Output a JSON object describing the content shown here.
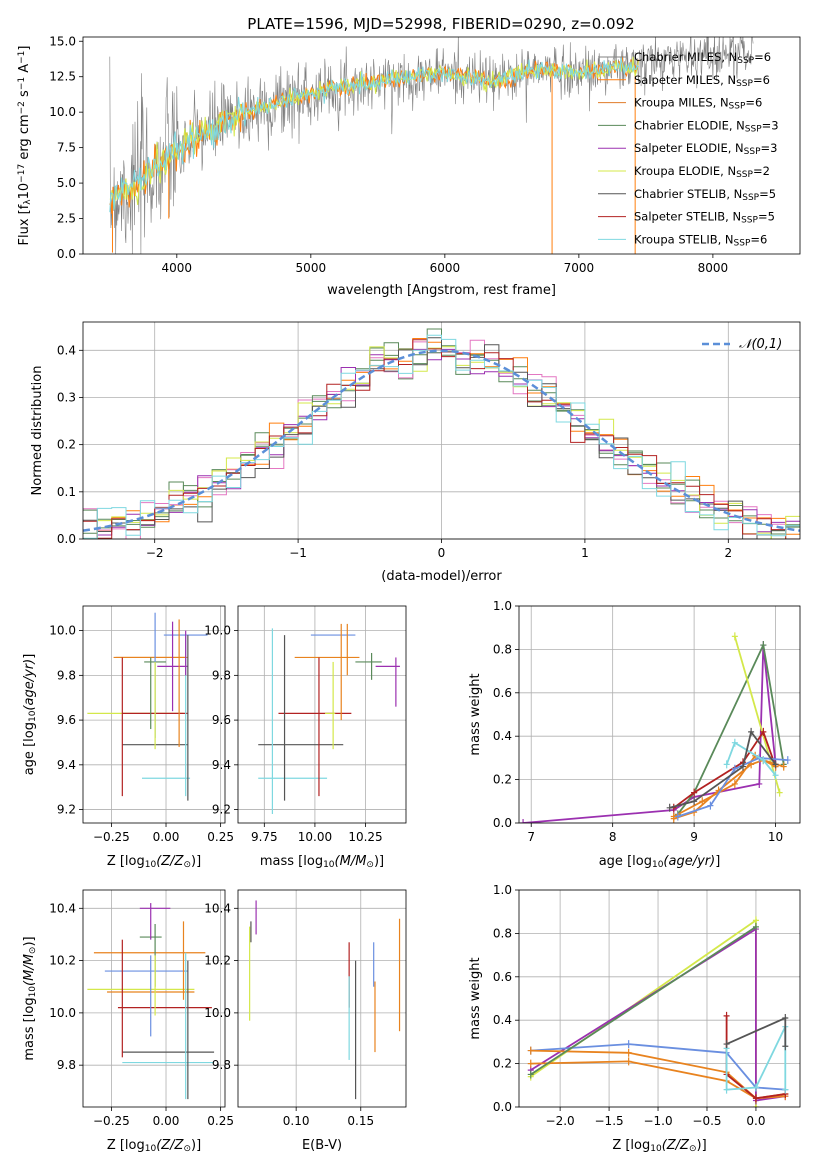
{
  "figure_title": "PLATE=1596, MJD=52998, FIBERID=0290, z=0.092",
  "models": [
    {
      "name": "Chabrier MILES",
      "n": "6",
      "color": "#808080"
    },
    {
      "name": "Salpeter MILES",
      "n": "6",
      "color": "#ff7f0e"
    },
    {
      "name": "Kroupa MILES",
      "n": "6",
      "color": "#e07b2a"
    },
    {
      "name": "Chabrier ELODIE",
      "n": "3",
      "color": "#5a8a5a"
    },
    {
      "name": "Salpeter ELODIE",
      "n": "3",
      "color": "#9b30b0"
    },
    {
      "name": "Kroupa ELODIE",
      "n": "2",
      "color": "#d4e84a"
    },
    {
      "name": "Chabrier STELIB",
      "n": "5",
      "color": "#555555"
    },
    {
      "name": "Salpeter STELIB",
      "n": "5",
      "color": "#b22222"
    },
    {
      "name": "Kroupa STELIB",
      "n": "6",
      "color": "#7fd8e0"
    }
  ],
  "chart_data": [
    {
      "id": "spectrum",
      "type": "line",
      "xlabel": "wavelength [Angstrom, rest frame]",
      "ylabel": "Flux [f_λ 10^-17 erg cm^-2 s^-1 A^-1]",
      "xlim": [
        3300,
        8650
      ],
      "ylim": [
        0,
        15.3
      ],
      "xticks": [
        4000,
        5000,
        6000,
        7000,
        8000
      ],
      "yticks": [
        0.0,
        2.5,
        5.0,
        7.5,
        10.0,
        12.5,
        15.0
      ],
      "data_range": [
        3500,
        8300
      ],
      "continuum": [
        [
          3500,
          3.8
        ],
        [
          3600,
          4.5
        ],
        [
          3700,
          4.8
        ],
        [
          3800,
          5.8
        ],
        [
          3900,
          6.5
        ],
        [
          4000,
          7.2
        ],
        [
          4200,
          8.6
        ],
        [
          4400,
          9.5
        ],
        [
          4600,
          10.2
        ],
        [
          4800,
          10.8
        ],
        [
          5000,
          11.3
        ],
        [
          5200,
          11.8
        ],
        [
          5400,
          12.0
        ],
        [
          5600,
          12.3
        ],
        [
          5800,
          12.5
        ],
        [
          6000,
          12.8
        ],
        [
          6200,
          12.4
        ],
        [
          6400,
          12.2
        ],
        [
          6600,
          12.9
        ],
        [
          6800,
          13.0
        ],
        [
          7000,
          12.8
        ],
        [
          7200,
          13.1
        ],
        [
          7400,
          13.2
        ],
        [
          7600,
          13.6
        ],
        [
          7800,
          14.0
        ],
        [
          8000,
          14.1
        ],
        [
          8300,
          14.3
        ]
      ]
    },
    {
      "id": "residual_hist",
      "type": "histogram",
      "xlabel": "(data-model)/error",
      "ylabel": "Normed distribution",
      "xlim": [
        -2.5,
        2.5
      ],
      "ylim": [
        0,
        0.46
      ],
      "xticks": [
        -2,
        -1,
        0,
        1,
        2
      ],
      "yticks": [
        0.0,
        0.1,
        0.2,
        0.3,
        0.4
      ],
      "bin_width": 0.1,
      "legend": "𝒩(0,1)",
      "legend_position": "top-right"
    },
    {
      "id": "age_vs_Z",
      "type": "errorbar",
      "xlabel": "Z [log10(Z/Z⊙)]",
      "ylabel": "age [log10(age/yr)]",
      "xlim": [
        -0.38,
        0.27
      ],
      "ylim": [
        9.14,
        10.11
      ],
      "xticks": [
        -0.25,
        0.0,
        0.25
      ],
      "xtick_labels": [
        "-0.25",
        "0.00",
        "0.25"
      ],
      "yticks": [
        9.2,
        9.4,
        9.6,
        9.8,
        10.0
      ],
      "points": [
        {
          "m": 0,
          "x": 0.09,
          "xe": 0.1,
          "y": 9.98,
          "ye": 0.0
        },
        {
          "m": 1,
          "x": -0.07,
          "xe": 0.17,
          "y": 9.88,
          "ye": 0.0
        },
        {
          "m": 2,
          "x": -0.07,
          "xe": 0.16,
          "y": 9.88,
          "ye": 0.0
        },
        {
          "m": 3,
          "x": -0.05,
          "xe": 0.05,
          "y": 9.86,
          "ye": 0.0
        },
        {
          "m": 4,
          "x": 0.03,
          "xe": 0.07,
          "y": 9.84,
          "ye": 0.2
        },
        {
          "m": 5,
          "x": -0.14,
          "xe": 0.22,
          "y": 9.63,
          "ye": 0.0
        },
        {
          "m": 6,
          "x": -0.05,
          "xe": 0.15,
          "y": 9.49,
          "ye": 0.0
        },
        {
          "m": 7,
          "x": -0.05,
          "xe": 0.15,
          "y": 9.63,
          "ye": 0.0
        },
        {
          "m": 8,
          "x": 0.0,
          "xe": 0.11,
          "y": 9.34,
          "ye": 0.0
        }
      ],
      "vlines": [
        {
          "m": 0,
          "x": -0.05,
          "y0": 9.52,
          "y1": 10.08
        },
        {
          "m": 1,
          "x": 0.06,
          "y0": 9.48,
          "y1": 10.05
        },
        {
          "m": 3,
          "x": -0.07,
          "y0": 9.56,
          "y1": 9.88
        },
        {
          "m": 5,
          "x": -0.05,
          "y0": 9.47,
          "y1": 9.86
        },
        {
          "m": 6,
          "x": 0.1,
          "y0": 9.24,
          "y1": 9.98
        },
        {
          "m": 7,
          "x": -0.2,
          "y0": 9.26,
          "y1": 9.88
        },
        {
          "m": 8,
          "x": 0.09,
          "y0": 9.26,
          "y1": 9.98
        },
        {
          "m": 4,
          "x": 0.09,
          "y0": 9.8,
          "y1": 10.0
        }
      ]
    },
    {
      "id": "age_vs_mass",
      "type": "errorbar",
      "xlabel": "mass [log10(M/M⊙)]",
      "ylabel": "",
      "xlim": [
        9.62,
        10.45
      ],
      "ylim": [
        9.14,
        10.11
      ],
      "xticks": [
        9.75,
        10.0,
        10.25
      ],
      "xtick_labels": [
        "9.75",
        "10.00",
        "10.25"
      ],
      "yticks": [
        9.2,
        9.4,
        9.6,
        9.8,
        10.0
      ],
      "hlines": [
        {
          "m": 0,
          "x0": 9.98,
          "x1": 10.2,
          "y": 9.98
        },
        {
          "m": 1,
          "x0": 9.9,
          "x1": 10.22,
          "y": 9.88
        },
        {
          "m": 3,
          "x0": 10.2,
          "x1": 10.33,
          "y": 9.86
        },
        {
          "m": 4,
          "x0": 10.3,
          "x1": 10.42,
          "y": 9.84
        },
        {
          "m": 6,
          "x0": 9.72,
          "x1": 10.14,
          "y": 9.49
        },
        {
          "m": 7,
          "x0": 9.82,
          "x1": 10.18,
          "y": 9.63
        },
        {
          "m": 8,
          "x0": 9.72,
          "x1": 10.06,
          "y": 9.34
        },
        {
          "m": 5,
          "x0": 10.05,
          "x1": 10.1,
          "y": 9.63
        }
      ],
      "vlines": [
        {
          "m": 1,
          "x": 10.13,
          "y0": 9.6,
          "y1": 10.03
        },
        {
          "m": 2,
          "x": 10.16,
          "y0": 9.8,
          "y1": 10.03
        },
        {
          "m": 3,
          "x": 10.28,
          "y0": 9.78,
          "y1": 9.9
        },
        {
          "m": 4,
          "x": 10.4,
          "y0": 9.66,
          "y1": 9.88
        },
        {
          "m": 5,
          "x": 10.09,
          "y0": 9.47,
          "y1": 9.86
        },
        {
          "m": 6,
          "x": 9.85,
          "y0": 9.24,
          "y1": 9.98
        },
        {
          "m": 7,
          "x": 10.02,
          "y0": 9.26,
          "y1": 9.88
        },
        {
          "m": 8,
          "x": 9.79,
          "y0": 9.18,
          "y1": 10.01
        }
      ]
    },
    {
      "id": "massweight_vs_age",
      "type": "line",
      "xlabel": "age [log10(age/yr)]",
      "ylabel": "mass weight",
      "xlim": [
        6.85,
        10.3
      ],
      "ylim": [
        0,
        1.0
      ],
      "xticks": [
        7,
        8,
        9,
        10
      ],
      "yticks": [
        0.0,
        0.2,
        0.4,
        0.6,
        0.8,
        1.0
      ],
      "series": [
        {
          "m": 4,
          "pts": [
            [
              6.9,
              0.0
            ],
            [
              8.75,
              0.06
            ],
            [
              9.0,
              0.12
            ],
            [
              9.8,
              0.18
            ],
            [
              9.85,
              0.82
            ],
            [
              10.0,
              0.27
            ]
          ]
        },
        {
          "m": 3,
          "pts": [
            [
              8.8,
              0.04
            ],
            [
              9.0,
              0.14
            ],
            [
              9.85,
              0.82
            ],
            [
              10.1,
              0.27
            ]
          ]
        },
        {
          "m": 5,
          "pts": [
            [
              9.5,
              0.86
            ],
            [
              10.05,
              0.14
            ]
          ]
        },
        {
          "m": 7,
          "pts": [
            [
              8.75,
              0.07
            ],
            [
              9.0,
              0.14
            ],
            [
              9.6,
              0.28
            ],
            [
              9.85,
              0.42
            ],
            [
              10.0,
              0.26
            ]
          ]
        },
        {
          "m": 1,
          "pts": [
            [
              8.75,
              0.02
            ],
            [
              9.0,
              0.05
            ],
            [
              9.3,
              0.15
            ],
            [
              9.7,
              0.27
            ],
            [
              9.85,
              0.29
            ],
            [
              10.1,
              0.26
            ]
          ]
        },
        {
          "m": 2,
          "pts": [
            [
              8.75,
              0.03
            ],
            [
              9.1,
              0.1
            ],
            [
              9.5,
              0.18
            ],
            [
              9.75,
              0.31
            ],
            [
              10.0,
              0.26
            ]
          ]
        },
        {
          "m": 0,
          "pts": [
            [
              8.8,
              0.03
            ],
            [
              9.2,
              0.08
            ],
            [
              9.5,
              0.25
            ],
            [
              9.8,
              0.3
            ],
            [
              10.15,
              0.29
            ]
          ]
        },
        {
          "m": 8,
          "pts": [
            [
              9.4,
              0.27
            ],
            [
              9.5,
              0.37
            ],
            [
              9.85,
              0.29
            ],
            [
              10.0,
              0.22
            ]
          ]
        },
        {
          "m": 6,
          "pts": [
            [
              8.7,
              0.07
            ],
            [
              9.0,
              0.1
            ],
            [
              9.6,
              0.26
            ],
            [
              9.7,
              0.42
            ],
            [
              10.0,
              0.27
            ]
          ]
        }
      ]
    },
    {
      "id": "mass_vs_Z",
      "type": "errorbar",
      "xlabel": "Z [log10(Z/Z⊙)]",
      "ylabel": "mass [log10(M/M⊙)]",
      "xlim": [
        -0.38,
        0.27
      ],
      "ylim": [
        9.64,
        10.47
      ],
      "xticks": [
        -0.25,
        0.0,
        0.25
      ],
      "xtick_labels": [
        "-0.25",
        "0.00",
        "0.25"
      ],
      "yticks": [
        9.8,
        10.0,
        10.2,
        10.4
      ],
      "hlines": [
        {
          "m": 4,
          "x0": -0.12,
          "x1": 0.02,
          "y": 10.4
        },
        {
          "m": 3,
          "x0": -0.12,
          "x1": -0.02,
          "y": 10.29
        },
        {
          "m": 1,
          "x0": -0.33,
          "x1": 0.18,
          "y": 10.23
        },
        {
          "m": 0,
          "x0": -0.28,
          "x1": 0.1,
          "y": 10.16
        },
        {
          "m": 2,
          "x0": -0.27,
          "x1": 0.13,
          "y": 10.08
        },
        {
          "m": 5,
          "x0": -0.36,
          "x1": 0.13,
          "y": 10.09
        },
        {
          "m": 7,
          "x0": -0.22,
          "x1": 0.21,
          "y": 10.02
        },
        {
          "m": 6,
          "x0": -0.2,
          "x1": 0.22,
          "y": 9.85
        },
        {
          "m": 8,
          "x0": -0.2,
          "x1": 0.22,
          "y": 9.81
        }
      ],
      "vlines": [
        {
          "m": 4,
          "x": -0.07,
          "y0": 10.28,
          "y1": 10.42
        },
        {
          "m": 3,
          "x": -0.05,
          "y0": 10.1,
          "y1": 10.34
        },
        {
          "m": 1,
          "x": 0.08,
          "y0": 10.05,
          "y1": 10.35
        },
        {
          "m": 0,
          "x": -0.07,
          "y0": 9.91,
          "y1": 10.22
        },
        {
          "m": 7,
          "x": -0.2,
          "y0": 9.83,
          "y1": 10.28
        },
        {
          "m": 6,
          "x": 0.1,
          "y0": 9.67,
          "y1": 10.2
        },
        {
          "m": 8,
          "x": 0.09,
          "y0": 9.67,
          "y1": 10.23
        },
        {
          "m": 5,
          "x": -0.05,
          "y0": 9.99,
          "y1": 10.22
        }
      ]
    },
    {
      "id": "mass_vs_ebv",
      "type": "errorbar",
      "xlabel": "E(B-V)",
      "ylabel": "",
      "xlim": [
        0.055,
        0.185
      ],
      "ylim": [
        9.64,
        10.47
      ],
      "xticks": [
        0.1,
        0.15
      ],
      "xtick_labels": [
        "0.10",
        "0.15"
      ],
      "yticks": [
        9.8,
        10.0,
        10.2,
        10.4
      ],
      "vlines": [
        {
          "m": 5,
          "x": 0.064,
          "y0": 9.97,
          "y1": 10.33
        },
        {
          "m": 6,
          "x": 0.065,
          "y0": 10.27,
          "y1": 10.35
        },
        {
          "m": 4,
          "x": 0.069,
          "y0": 10.3,
          "y1": 10.43
        },
        {
          "m": 7,
          "x": 0.141,
          "y0": 10.02,
          "y1": 10.27
        },
        {
          "m": 8,
          "x": 0.141,
          "y0": 9.82,
          "y1": 10.14
        },
        {
          "m": 6,
          "x": 0.146,
          "y0": 9.67,
          "y1": 10.2
        },
        {
          "m": 0,
          "x": 0.16,
          "y0": 10.1,
          "y1": 10.27
        },
        {
          "m": 1,
          "x": 0.161,
          "y0": 9.85,
          "y1": 10.12
        },
        {
          "m": 2,
          "x": 0.18,
          "y0": 9.93,
          "y1": 10.36
        }
      ]
    },
    {
      "id": "massweight_vs_Z",
      "type": "line",
      "xlabel": "Z [log10(Z/Z⊙)]",
      "ylabel": "mass weight",
      "xlim": [
        -2.42,
        0.45
      ],
      "ylim": [
        0,
        1.0
      ],
      "xticks": [
        -2.0,
        -1.5,
        -1.0,
        -0.5,
        0.0
      ],
      "xtick_labels": [
        "-2.0",
        "-1.5",
        "-1.0",
        "-0.5",
        "0.0"
      ],
      "yticks": [
        0.0,
        0.2,
        0.4,
        0.6,
        0.8,
        1.0
      ],
      "series": [
        {
          "m": 5,
          "pts": [
            [
              -2.3,
              0.14
            ],
            [
              0.0,
              0.86
            ],
            [
              0.0,
              0.0
            ]
          ]
        },
        {
          "m": 4,
          "pts": [
            [
              -2.3,
              0.17
            ],
            [
              0.0,
              0.82
            ],
            [
              0.0,
              0.03
            ],
            [
              0.3,
              0.05
            ]
          ]
        },
        {
          "m": 0,
          "pts": [
            [
              -2.3,
              0.26
            ],
            [
              -1.3,
              0.29
            ],
            [
              -0.3,
              0.25
            ],
            [
              0.0,
              0.09
            ],
            [
              0.3,
              0.08
            ]
          ]
        },
        {
          "m": 1,
          "pts": [
            [
              -2.3,
              0.26
            ],
            [
              -1.3,
              0.25
            ],
            [
              -0.3,
              0.16
            ],
            [
              0.0,
              0.04
            ],
            [
              0.3,
              0.05
            ]
          ]
        },
        {
          "m": 2,
          "pts": [
            [
              -2.3,
              0.2
            ],
            [
              -1.3,
              0.21
            ],
            [
              -0.3,
              0.12
            ],
            [
              0.0,
              0.04
            ],
            [
              0.3,
              0.06
            ]
          ]
        },
        {
          "m": 7,
          "pts": [
            [
              -0.3,
              0.42
            ],
            [
              -0.3,
              0.15
            ],
            [
              0.0,
              0.04
            ],
            [
              0.3,
              0.06
            ]
          ]
        },
        {
          "m": 8,
          "pts": [
            [
              -0.3,
              0.27
            ],
            [
              -0.3,
              0.08
            ],
            [
              0.0,
              0.09
            ],
            [
              0.3,
              0.37
            ],
            [
              0.3,
              0.08
            ]
          ]
        },
        {
          "m": 6,
          "pts": [
            [
              -0.3,
              0.29
            ],
            [
              0.3,
              0.41
            ],
            [
              0.3,
              0.28
            ]
          ]
        },
        {
          "m": 3,
          "pts": [
            [
              -2.3,
              0.15
            ],
            [
              0.0,
              0.83
            ]
          ]
        }
      ]
    }
  ]
}
